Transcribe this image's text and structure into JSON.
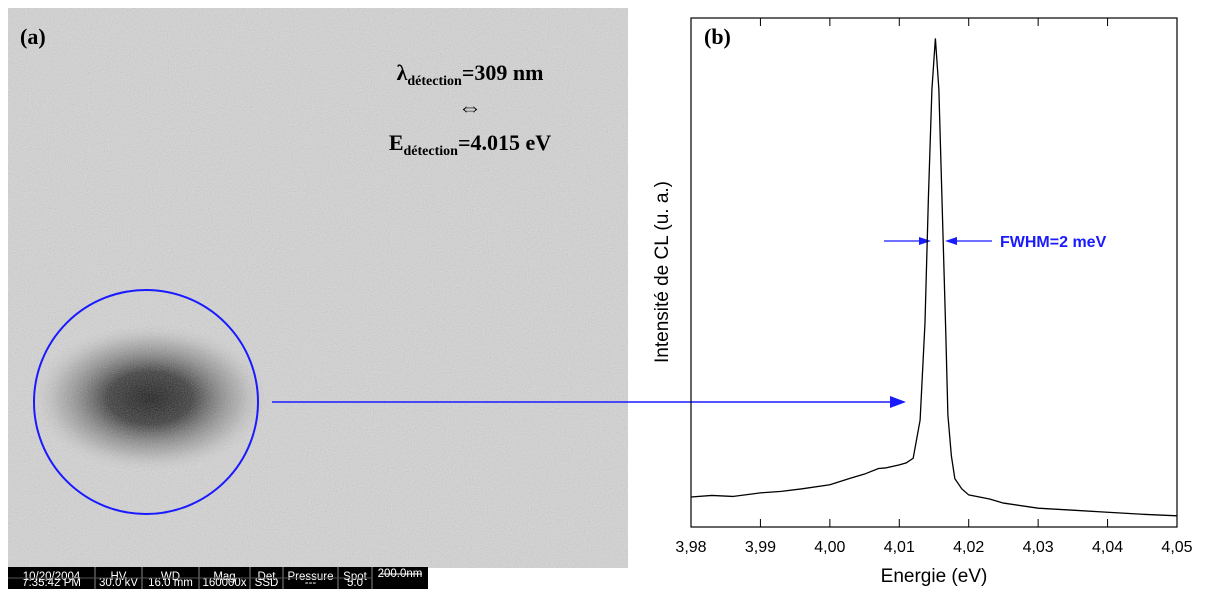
{
  "image_panel": {
    "label": "(a)",
    "annotation": {
      "line1": {
        "symbol": "λ",
        "subscript": "détection",
        "rest": "=309 nm"
      },
      "equivalence": "⇔",
      "line2": {
        "symbol": "E",
        "subscript": "détection",
        "rest": "=4.015 eV"
      }
    },
    "info_bar": {
      "columns": [
        {
          "header": "10/20/2004",
          "value": "7:35:42 PM"
        },
        {
          "header": "HV",
          "value": "30.0 kV"
        },
        {
          "header": "WD",
          "value": "16.0 mm"
        },
        {
          "header": "Mag",
          "value": "160000x"
        },
        {
          "header": "Det",
          "value": "SSD"
        },
        {
          "header": "Pressure",
          "value": "---"
        },
        {
          "header": "Spot",
          "value": "5.0"
        }
      ],
      "scale_bar": "200.0nm"
    }
  },
  "chart_data": {
    "type": "line",
    "panel_label": "(b)",
    "x_label": "Energie (eV)",
    "y_label": "Intensité de CL (u. a.)",
    "annotation": "FWHM=2 meV",
    "color": "#000000",
    "xlim": [
      3.98,
      4.05
    ],
    "ylim": [
      0,
      100
    ],
    "xticks": [
      {
        "value": 3.98,
        "label": "3,98"
      },
      {
        "value": 3.99,
        "label": "3,99"
      },
      {
        "value": 4.0,
        "label": "4,00"
      },
      {
        "value": 4.01,
        "label": "4,01"
      },
      {
        "value": 4.02,
        "label": "4,02"
      },
      {
        "value": 4.03,
        "label": "4,03"
      },
      {
        "value": 4.04,
        "label": "4,04"
      },
      {
        "value": 4.05,
        "label": "4,05"
      }
    ],
    "x": [
      3.98,
      3.983,
      3.986,
      3.99,
      3.993,
      3.996,
      4.0,
      4.003,
      4.005,
      4.007,
      4.008,
      4.01,
      4.011,
      4.012,
      4.013,
      4.0137,
      4.0142,
      4.0147,
      4.0152,
      4.0157,
      4.0162,
      4.0167,
      4.017,
      4.0175,
      4.018,
      4.019,
      4.02,
      4.023,
      4.025,
      4.03,
      4.035,
      4.04,
      4.045,
      4.05
    ],
    "values": [
      5.9,
      6.2,
      6.0,
      6.7,
      7.0,
      7.5,
      8.3,
      9.6,
      10.4,
      11.5,
      11.6,
      12.2,
      12.6,
      13.5,
      21,
      40,
      65,
      86,
      96,
      86,
      62,
      38,
      22,
      14,
      9.5,
      7.5,
      6.3,
      5.5,
      4.7,
      3.7,
      3.3,
      2.9,
      2.5,
      2.2
    ]
  }
}
